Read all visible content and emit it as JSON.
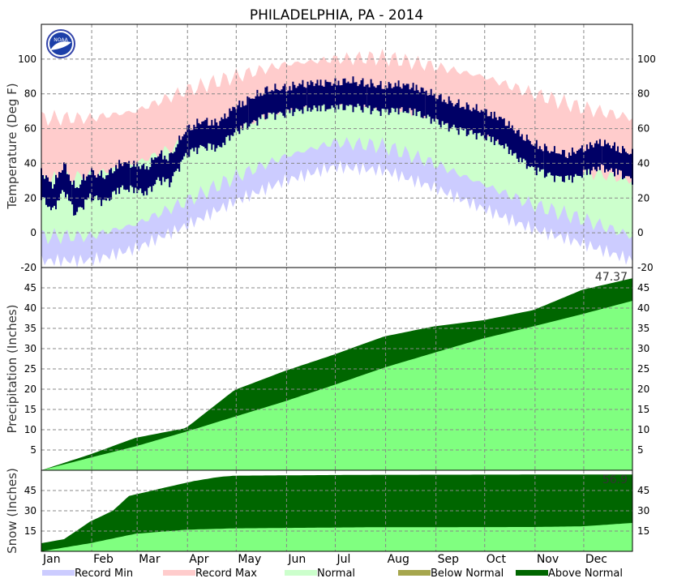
{
  "title": "PHILADELPHIA, PA - 2014",
  "logo_text": "NOAA",
  "months": [
    "Jan",
    "Feb",
    "Mar",
    "Apr",
    "May",
    "Jun",
    "Jul",
    "Aug",
    "Sep",
    "Oct",
    "Nov",
    "Dec"
  ],
  "legend": [
    {
      "label": "Record Min",
      "color": "#ccccff"
    },
    {
      "label": "Record Max",
      "color": "#ffcccc"
    },
    {
      "label": "Normal",
      "color": "#ccffcc"
    },
    {
      "label": "Below Normal",
      "color": "#a6a64d"
    },
    {
      "label": "Above Normal",
      "color": "#006600"
    }
  ],
  "chart_data": [
    {
      "type": "area",
      "ylabel": "Temperature (Deg F)",
      "ylim": [
        -20,
        120
      ],
      "yticks": [
        -20,
        0,
        20,
        40,
        60,
        80,
        100
      ],
      "grid": true,
      "series": [
        {
          "name": "Record Max",
          "color": "#ffcccc",
          "points": [
            [
              1,
              66
            ],
            [
              31,
              66
            ],
            [
              59,
              70
            ],
            [
              90,
              82
            ],
            [
              120,
              90
            ],
            [
              151,
              97
            ],
            [
              181,
              100
            ],
            [
              212,
              101
            ],
            [
              243,
              96
            ],
            [
              273,
              90
            ],
            [
              304,
              80
            ],
            [
              334,
              72
            ],
            [
              365,
              66
            ]
          ]
        },
        {
          "name": "Normal",
          "color": "#ccffcc",
          "points": [
            [
              1,
              30
            ],
            [
              31,
              33
            ],
            [
              59,
              40
            ],
            [
              90,
              52
            ],
            [
              120,
              62
            ],
            [
              151,
              71
            ],
            [
              181,
              76
            ],
            [
              212,
              75
            ],
            [
              243,
              68
            ],
            [
              273,
              57
            ],
            [
              304,
              46
            ],
            [
              334,
              36
            ],
            [
              365,
              30
            ]
          ]
        },
        {
          "name": "Record Min",
          "color": "#ccccff",
          "points": [
            [
              1,
              -2
            ],
            [
              31,
              -2
            ],
            [
              59,
              5
            ],
            [
              90,
              18
            ],
            [
              120,
              32
            ],
            [
              151,
              44
            ],
            [
              181,
              52
            ],
            [
              212,
              50
            ],
            [
              243,
              40
            ],
            [
              273,
              28
            ],
            [
              304,
              16
            ],
            [
              334,
              8
            ],
            [
              365,
              -2
            ]
          ]
        },
        {
          "name": "",
          "color": "#000066",
          "points": [
            [
              1,
              28
            ],
            [
              8,
              20
            ],
            [
              15,
              32
            ],
            [
              22,
              18
            ],
            [
              31,
              28
            ],
            [
              40,
              25
            ],
            [
              50,
              33
            ],
            [
              59,
              32
            ],
            [
              66,
              30
            ],
            [
              73,
              38
            ],
            [
              80,
              36
            ],
            [
              90,
              52
            ],
            [
              100,
              57
            ],
            [
              110,
              56
            ],
            [
              120,
              65
            ],
            [
              130,
              70
            ],
            [
              140,
              75
            ],
            [
              151,
              76
            ],
            [
              160,
              78
            ],
            [
              170,
              79
            ],
            [
              181,
              79
            ],
            [
              190,
              80
            ],
            [
              200,
              79
            ],
            [
              212,
              77
            ],
            [
              220,
              78
            ],
            [
              230,
              77
            ],
            [
              243,
              72
            ],
            [
              250,
              69
            ],
            [
              260,
              66
            ],
            [
              273,
              63
            ],
            [
              285,
              58
            ],
            [
              295,
              50
            ],
            [
              304,
              44
            ],
            [
              315,
              40
            ],
            [
              325,
              38
            ],
            [
              334,
              41
            ],
            [
              345,
              45
            ],
            [
              355,
              42
            ],
            [
              365,
              38
            ]
          ]
        }
      ]
    },
    {
      "type": "area",
      "ylabel": "Precipitation (Inches)",
      "ylim": [
        0,
        50
      ],
      "yticks": [
        5,
        10,
        15,
        20,
        25,
        30,
        35,
        40,
        45
      ],
      "annotation": "47.37",
      "series": [
        {
          "name": "Above Normal",
          "color": "#006600",
          "points": [
            [
              1,
              0
            ],
            [
              31,
              3.9
            ],
            [
              59,
              8
            ],
            [
              90,
              10.4
            ],
            [
              120,
              19.8
            ],
            [
              151,
              24.5
            ],
            [
              181,
              28.5
            ],
            [
              212,
              33
            ],
            [
              243,
              35.5
            ],
            [
              273,
              37
            ],
            [
              304,
              39.5
            ],
            [
              334,
              44.5
            ],
            [
              365,
              47.37
            ]
          ]
        },
        {
          "name": "Normal",
          "color": "#80ff80",
          "points": [
            [
              1,
              0
            ],
            [
              31,
              3.1
            ],
            [
              59,
              5.9
            ],
            [
              90,
              9.5
            ],
            [
              120,
              13.2
            ],
            [
              151,
              17
            ],
            [
              181,
              21
            ],
            [
              212,
              25.3
            ],
            [
              243,
              29
            ],
            [
              273,
              32.5
            ],
            [
              304,
              35.5
            ],
            [
              334,
              38.5
            ],
            [
              365,
              41.8
            ]
          ]
        }
      ]
    },
    {
      "type": "area",
      "ylabel": "Snow (Inches)",
      "ylim": [
        0,
        60
      ],
      "yticks": [
        15,
        30,
        45
      ],
      "annotation": "56.9",
      "series": [
        {
          "name": "Above Normal",
          "color": "#006600",
          "points": [
            [
              1,
              6
            ],
            [
              15,
              9
            ],
            [
              31,
              22
            ],
            [
              45,
              30
            ],
            [
              55,
              41
            ],
            [
              66,
              44
            ],
            [
              80,
              48
            ],
            [
              95,
              52
            ],
            [
              110,
              55
            ],
            [
              120,
              56
            ],
            [
              200,
              56.6
            ],
            [
              300,
              56.8
            ],
            [
              365,
              56.9
            ]
          ]
        },
        {
          "name": "Normal",
          "color": "#80ff80",
          "points": [
            [
              1,
              0
            ],
            [
              31,
              6
            ],
            [
              59,
              13
            ],
            [
              80,
              15
            ],
            [
              90,
              16
            ],
            [
              120,
              17
            ],
            [
              200,
              17.8
            ],
            [
              304,
              18
            ],
            [
              334,
              18.5
            ],
            [
              365,
              21
            ]
          ]
        }
      ]
    }
  ]
}
